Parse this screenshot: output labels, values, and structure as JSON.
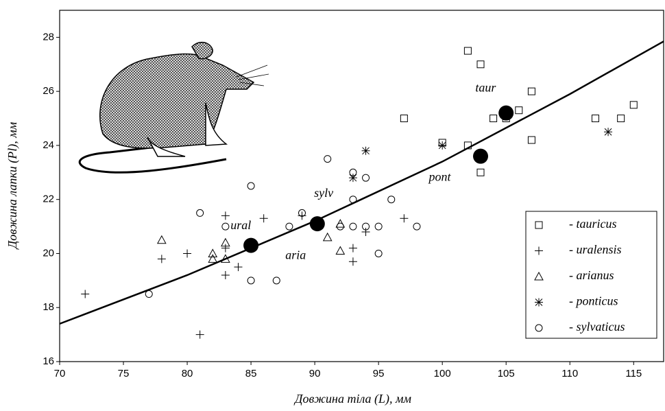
{
  "chart_data": {
    "type": "scatter",
    "xlabel": "Довжина тіла (L), мм",
    "ylabel": "Довжина лапки (Pl), мм",
    "xlim": [
      70,
      117.35
    ],
    "ylim": [
      16,
      29
    ],
    "xticks": [
      70,
      75,
      80,
      85,
      90,
      95,
      100,
      105,
      110,
      115
    ],
    "yticks": [
      16,
      18,
      20,
      22,
      24,
      26,
      28
    ],
    "grid": false,
    "legend": "lower right",
    "series": [
      {
        "name": "- tauricus",
        "marker": "square",
        "color": "#000000",
        "x": [
          102,
          103,
          97,
          107,
          106,
          104,
          105,
          107,
          102,
          100,
          103,
          112,
          114,
          115
        ],
        "values": [
          27.5,
          27,
          25,
          26,
          25.3,
          25,
          25,
          24.2,
          24,
          24.1,
          23,
          25,
          25,
          25.5
        ]
      },
      {
        "name": "- uralensis",
        "marker": "plus",
        "color": "#000000",
        "x": [
          72,
          78,
          80,
          81,
          83,
          83,
          83,
          84,
          85,
          86,
          89,
          93,
          93,
          94,
          97
        ],
        "values": [
          18.5,
          19.8,
          20,
          17,
          21.4,
          20.2,
          19.2,
          19.5,
          20.2,
          21.3,
          21.4,
          20.2,
          19.7,
          20.8,
          21.3
        ]
      },
      {
        "name": "- arianus",
        "marker": "triangle",
        "color": "#000000",
        "x": [
          78,
          82,
          82,
          83,
          83,
          91,
          92,
          92
        ],
        "values": [
          20.5,
          20,
          19.8,
          20.4,
          19.8,
          20.6,
          20.1,
          21.1
        ]
      },
      {
        "name": "- ponticus",
        "marker": "star",
        "color": "#000000",
        "x": [
          94,
          93,
          100,
          113
        ],
        "values": [
          23.8,
          22.8,
          24,
          24.5
        ]
      },
      {
        "name": "- sylvaticus",
        "marker": "circle",
        "color": "#000000",
        "x": [
          77,
          81,
          83,
          85,
          85,
          87,
          88,
          89,
          90,
          91,
          92,
          93,
          93,
          93,
          94,
          94,
          95,
          95,
          96,
          98,
          85
        ],
        "values": [
          18.5,
          21.5,
          21,
          22.5,
          19,
          19,
          21,
          21.5,
          21,
          23.5,
          21,
          23,
          22,
          21,
          22.8,
          21,
          21,
          20,
          22,
          21,
          20.3
        ]
      }
    ],
    "means": {
      "x": [
        85,
        90.2,
        103,
        105
      ],
      "values": [
        20.3,
        21.1,
        23.6,
        25.2
      ],
      "color": "#000000"
    },
    "fit": {
      "x": [
        70,
        80,
        90,
        100,
        110,
        117.35
      ],
      "values": [
        17.4,
        19.2,
        21.2,
        23.4,
        25.9,
        27.85
      ],
      "color": "#000000"
    },
    "annotations": [
      "ural",
      "sylv",
      "pont",
      "taur",
      "aria"
    ]
  }
}
